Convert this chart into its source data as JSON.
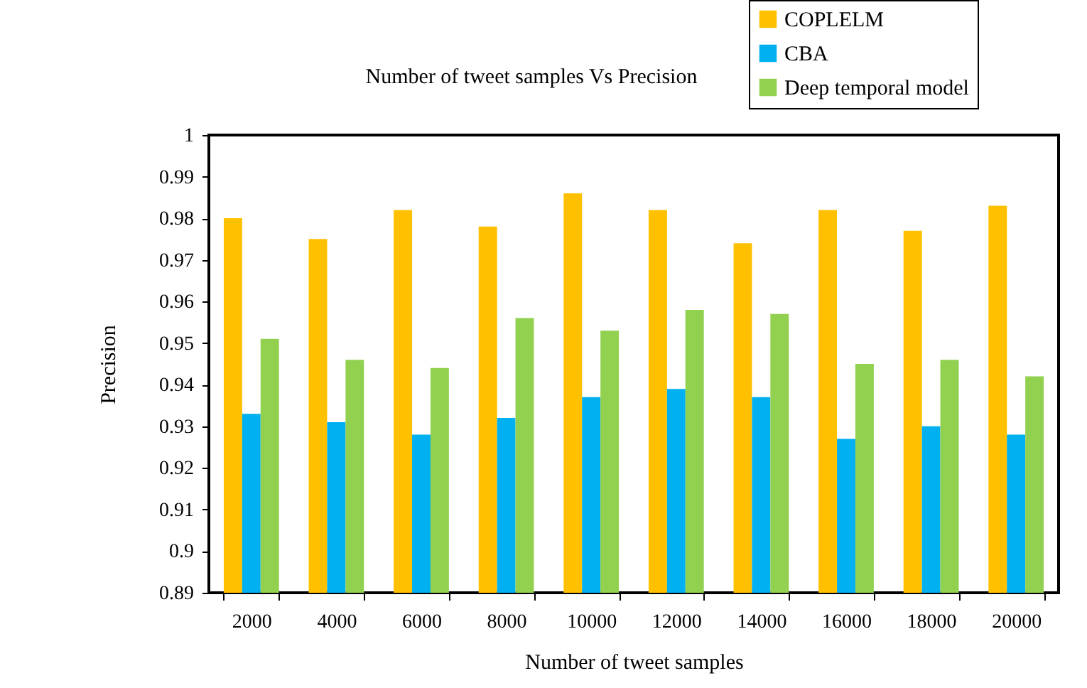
{
  "chart_data": {
    "type": "bar",
    "title": "Number of tweet samples Vs Precision",
    "xlabel": "Number of tweet samples",
    "ylabel": "Precision",
    "categories": [
      "2000",
      "4000",
      "6000",
      "8000",
      "10000",
      "12000",
      "14000",
      "16000",
      "18000",
      "20000"
    ],
    "series": [
      {
        "name": "COPLELM",
        "color": "#ffc000",
        "values": [
          0.98,
          0.975,
          0.982,
          0.978,
          0.986,
          0.982,
          0.974,
          0.982,
          0.977,
          0.983
        ]
      },
      {
        "name": "CBA",
        "color": "#00b0f0",
        "values": [
          0.933,
          0.931,
          0.928,
          0.932,
          0.937,
          0.939,
          0.937,
          0.927,
          0.93,
          0.928
        ]
      },
      {
        "name": "Deep temporal model",
        "color": "#92d050",
        "values": [
          0.951,
          0.946,
          0.944,
          0.956,
          0.953,
          0.958,
          0.957,
          0.945,
          0.946,
          0.942
        ]
      }
    ],
    "ylim": [
      0.89,
      1
    ],
    "yticks": [
      0.89,
      0.9,
      0.91,
      0.92,
      0.93,
      0.94,
      0.95,
      0.96,
      0.97,
      0.98,
      0.99,
      1
    ],
    "grid": false,
    "legend": "top right"
  }
}
